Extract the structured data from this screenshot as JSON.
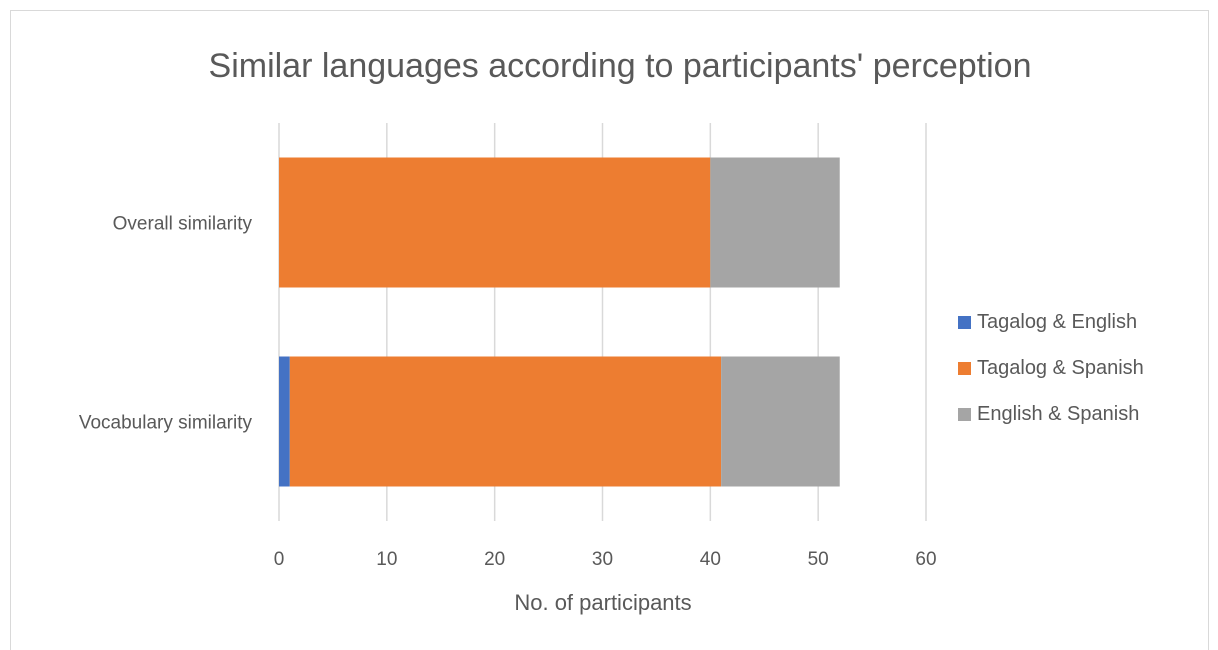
{
  "chart_data": {
    "type": "bar",
    "orientation": "horizontal",
    "stacked": true,
    "title": "Similar languages according to participants' perception",
    "xlabel": "No. of participants",
    "ylabel": "",
    "categories": [
      "Overall similarity",
      "Vocabulary similarity"
    ],
    "series": [
      {
        "name": "Tagalog & English",
        "values": [
          0,
          1
        ],
        "color": "#4472c4"
      },
      {
        "name": "Tagalog & Spanish",
        "values": [
          40,
          40
        ],
        "color": "#ed7d31"
      },
      {
        "name": "English & Spanish",
        "values": [
          12,
          11
        ],
        "color": "#a5a5a5"
      }
    ],
    "xlim": [
      0,
      60
    ],
    "xticks": [
      0,
      10,
      20,
      30,
      40,
      50,
      60
    ],
    "grid": true,
    "legend_position": "right"
  }
}
